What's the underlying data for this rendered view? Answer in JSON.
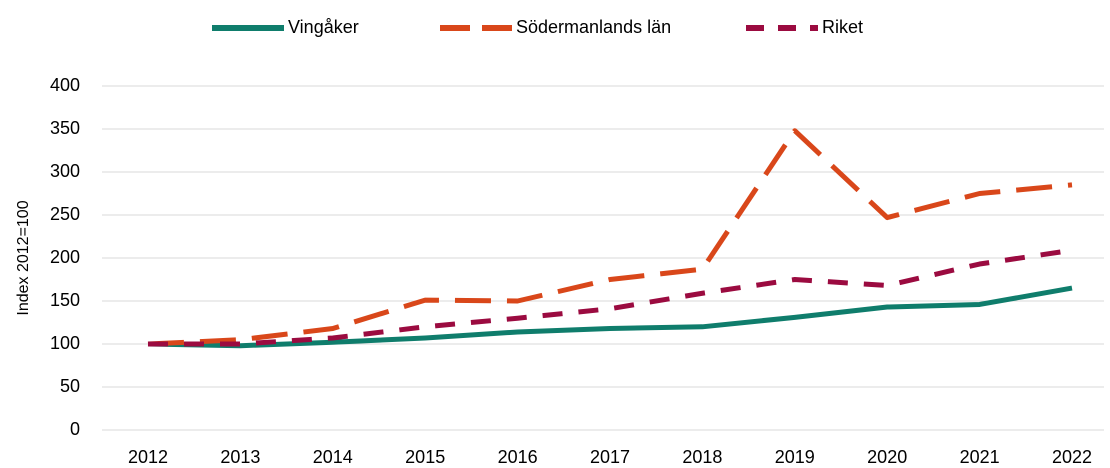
{
  "chart_data": {
    "type": "line",
    "y_label": "Index 2012=100",
    "categories": [
      "2012",
      "2013",
      "2014",
      "2015",
      "2016",
      "2017",
      "2018",
      "2019",
      "2020",
      "2021",
      "2022"
    ],
    "series": [
      {
        "name": "Vingåker",
        "color": "#0f7d6c",
        "dash": "solid",
        "values": [
          100,
          98,
          102,
          107,
          114,
          118,
          120,
          131,
          143,
          146,
          165
        ]
      },
      {
        "name": "Södermanlands län",
        "color": "#d9471a",
        "dash": "long",
        "values": [
          100,
          105,
          118,
          151,
          150,
          175,
          187,
          348,
          247,
          275,
          285
        ]
      },
      {
        "name": "Riket",
        "color": "#9b0b40",
        "dash": "short",
        "values": [
          100,
          100,
          107,
          120,
          130,
          141,
          159,
          175,
          168,
          193,
          209
        ]
      }
    ],
    "ylim": [
      0,
      400
    ],
    "yticks": [
      0,
      50,
      100,
      150,
      200,
      250,
      300,
      350,
      400
    ],
    "grid": true,
    "legend": "top"
  }
}
